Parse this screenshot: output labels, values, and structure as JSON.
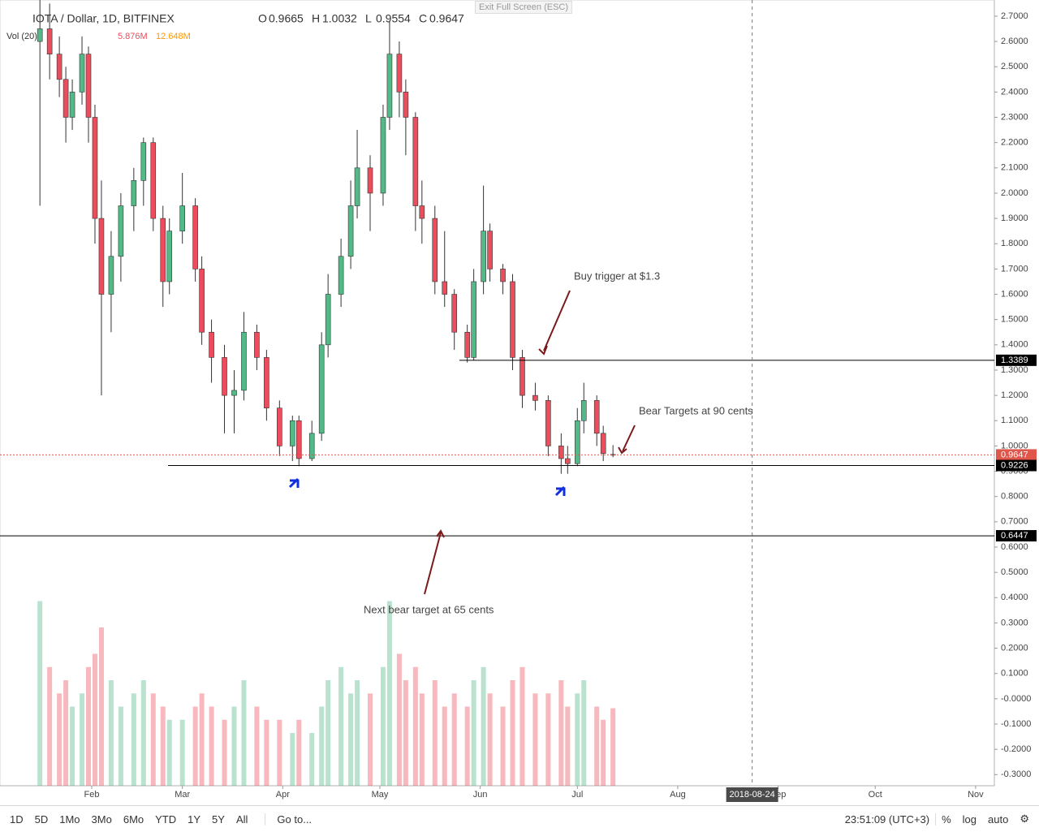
{
  "chart_data": {
    "type": "candlestick",
    "title": "IOTA / Dollar, 1D, BITFINEX",
    "ohlc": [
      {
        "label": "O",
        "value": 0.9665
      },
      {
        "label": "H",
        "value": 1.0032
      },
      {
        "label": "L",
        "value": 0.9554
      },
      {
        "label": "C",
        "value": 0.9647
      }
    ],
    "volume_legend": [
      "Vol (20)",
      "5.876M",
      "12.648M"
    ],
    "x": [
      16,
      19,
      22,
      24,
      26,
      29,
      31,
      33,
      35,
      38,
      41,
      45,
      48,
      51,
      54,
      56,
      60,
      64,
      66,
      69,
      73,
      76,
      79,
      83,
      86,
      90,
      94,
      96,
      100,
      103,
      105,
      109,
      112,
      114,
      118,
      122,
      124,
      127,
      129,
      132,
      134,
      138,
      141,
      144,
      148,
      150,
      153,
      155,
      159,
      162,
      165,
      169,
      173,
      177,
      179,
      182,
      184,
      188,
      190,
      193
    ],
    "open": [
      2.6,
      2.65,
      2.55,
      2.45,
      2.3,
      2.4,
      2.55,
      2.3,
      1.9,
      1.6,
      1.75,
      1.95,
      2.05,
      2.2,
      1.9,
      1.65,
      1.85,
      1.95,
      1.7,
      1.45,
      1.35,
      1.2,
      1.22,
      1.45,
      1.35,
      1.15,
      1.0,
      1.1,
      0.95,
      1.05,
      1.4,
      1.6,
      1.75,
      1.95,
      2.1,
      2.0,
      2.3,
      2.55,
      2.4,
      2.3,
      1.95,
      1.9,
      1.65,
      1.6,
      1.45,
      1.35,
      1.65,
      1.85,
      1.7,
      1.65,
      1.35,
      1.2,
      1.18,
      1.0,
      0.95,
      0.93,
      1.1,
      1.18,
      1.05,
      0.9665
    ],
    "high": [
      2.8,
      2.75,
      2.62,
      2.5,
      2.45,
      2.62,
      2.58,
      2.35,
      2.05,
      1.85,
      2.0,
      2.1,
      2.22,
      2.22,
      1.95,
      1.9,
      2.08,
      1.98,
      1.75,
      1.5,
      1.4,
      1.3,
      1.53,
      1.48,
      1.38,
      1.18,
      1.12,
      1.12,
      1.1,
      1.45,
      1.68,
      1.82,
      2.05,
      2.25,
      2.15,
      2.35,
      2.68,
      2.6,
      2.45,
      2.32,
      2.05,
      1.95,
      1.85,
      1.62,
      1.48,
      1.7,
      2.03,
      1.88,
      1.72,
      1.68,
      1.38,
      1.25,
      1.2,
      1.05,
      1.0,
      1.15,
      1.25,
      1.2,
      1.08,
      1.0032
    ],
    "low": [
      1.95,
      2.45,
      2.38,
      2.2,
      2.25,
      2.35,
      2.2,
      1.8,
      1.2,
      1.45,
      1.65,
      1.85,
      1.95,
      1.85,
      1.55,
      1.6,
      1.8,
      1.65,
      1.4,
      1.25,
      1.05,
      1.05,
      1.18,
      1.3,
      1.1,
      0.96,
      0.94,
      0.92,
      0.94,
      1.02,
      1.35,
      1.55,
      1.7,
      1.9,
      1.85,
      1.95,
      2.25,
      2.3,
      2.15,
      1.85,
      1.8,
      1.6,
      1.55,
      1.38,
      1.33,
      1.34,
      1.6,
      1.65,
      1.6,
      1.3,
      1.15,
      1.14,
      0.96,
      0.89,
      0.89,
      0.92,
      1.05,
      1.0,
      0.94,
      0.9554
    ],
    "close": [
      2.65,
      2.55,
      2.45,
      2.3,
      2.4,
      2.55,
      2.3,
      1.9,
      1.6,
      1.75,
      1.95,
      2.05,
      2.2,
      1.9,
      1.65,
      1.85,
      1.95,
      1.7,
      1.45,
      1.35,
      1.2,
      1.22,
      1.45,
      1.35,
      1.15,
      1.0,
      1.1,
      0.95,
      1.05,
      1.4,
      1.6,
      1.75,
      1.95,
      2.1,
      2.0,
      2.3,
      2.55,
      2.4,
      2.3,
      1.95,
      1.9,
      1.65,
      1.6,
      1.45,
      1.35,
      1.65,
      1.85,
      1.7,
      1.65,
      1.35,
      1.2,
      1.18,
      1.0,
      0.95,
      0.93,
      1.1,
      1.18,
      1.05,
      0.97,
      0.9647
    ],
    "volume": [
      14,
      9,
      7,
      8,
      6,
      7,
      9,
      10,
      12,
      8,
      6,
      7,
      8,
      7,
      6,
      5,
      5,
      6,
      7,
      6,
      5,
      6,
      8,
      6,
      5,
      5,
      4,
      5,
      4,
      6,
      8,
      9,
      7,
      8,
      7,
      9,
      14,
      10,
      8,
      9,
      7,
      8,
      6,
      7,
      6,
      8,
      9,
      7,
      6,
      8,
      9,
      7,
      7,
      8,
      6,
      7,
      8,
      6,
      5,
      5.876
    ],
    "volume_lim": [
      0,
      16
    ],
    "up_color": "#53b987",
    "down_color": "#eb4d5c",
    "xlim": [
      3.67,
      310.8
    ],
    "xticks": [
      {
        "value": 32,
        "label": "Feb"
      },
      {
        "value": 60,
        "label": "Mar"
      },
      {
        "value": 91,
        "label": "Apr"
      },
      {
        "value": 121,
        "label": "May"
      },
      {
        "value": 152,
        "label": "Jun"
      },
      {
        "value": 182,
        "label": "Jul"
      },
      {
        "value": 213,
        "label": "Aug"
      },
      {
        "value": 244,
        "label": "Sep"
      },
      {
        "value": 274,
        "label": "Oct"
      },
      {
        "value": 305,
        "label": "Nov"
      }
    ],
    "ylim": [
      -0.344,
      2.764
    ],
    "yticks": [
      {
        "value": 2.7,
        "label": "2.7000"
      },
      {
        "value": 2.6,
        "label": "2.6000"
      },
      {
        "value": 2.5,
        "label": "2.5000"
      },
      {
        "value": 2.4,
        "label": "2.4000"
      },
      {
        "value": 2.3,
        "label": "2.3000"
      },
      {
        "value": 2.2,
        "label": "2.2000"
      },
      {
        "value": 2.1,
        "label": "2.1000"
      },
      {
        "value": 2.0,
        "label": "2.0000"
      },
      {
        "value": 1.9,
        "label": "1.9000"
      },
      {
        "value": 1.8,
        "label": "1.8000"
      },
      {
        "value": 1.7,
        "label": "1.7000"
      },
      {
        "value": 1.6,
        "label": "1.6000"
      },
      {
        "value": 1.5,
        "label": "1.5000"
      },
      {
        "value": 1.4,
        "label": "1.4000"
      },
      {
        "value": 1.3,
        "label": "1.3000"
      },
      {
        "value": 1.2,
        "label": "1.2000"
      },
      {
        "value": 1.1,
        "label": "1.1000"
      },
      {
        "value": 1.0,
        "label": "1.0000"
      },
      {
        "value": 0.9,
        "label": "0.9000"
      },
      {
        "value": 0.8,
        "label": "0.8000"
      },
      {
        "value": 0.7,
        "label": "0.7000"
      },
      {
        "value": 0.6,
        "label": "0.6000"
      },
      {
        "value": 0.5,
        "label": "0.5000"
      },
      {
        "value": 0.4,
        "label": "0.4000"
      },
      {
        "value": 0.3,
        "label": "0.3000"
      },
      {
        "value": 0.2,
        "label": "0.2000"
      },
      {
        "value": 0.1,
        "label": "0.1000"
      },
      {
        "value": 0,
        "label": "-0.0000"
      },
      {
        "value": -0.1,
        "label": "-0.1000"
      },
      {
        "value": -0.2,
        "label": "-0.2000"
      },
      {
        "value": -0.3,
        "label": "-0.3000"
      }
    ],
    "price_lines": [
      {
        "value": 1.3389,
        "color": "#000000"
      },
      {
        "value": 0.9647,
        "color": "#e0564a"
      },
      {
        "value": 0.9226,
        "color": "#000000"
      },
      {
        "value": 0.6447,
        "color": "#000000"
      }
    ],
    "crosshair": {
      "value": 236,
      "label": "2018-08-24"
    },
    "annotations": [
      "Buy trigger at $1.3",
      "Bear Targets at 90 cents",
      "Next bear target at 65 cents"
    ],
    "annotation_color": "#1a1aa6"
  },
  "toolbar": {
    "ranges": [
      "1D",
      "5D",
      "1Mo",
      "3Mo",
      "6Mo",
      "YTD",
      "1Y",
      "5Y",
      "All"
    ],
    "goto": "Go to...",
    "clock": "23:51:09 (UTC+3)",
    "options": [
      "%",
      "log",
      "auto"
    ]
  },
  "exit_fullscreen": "Exit Full Screen (ESC)"
}
